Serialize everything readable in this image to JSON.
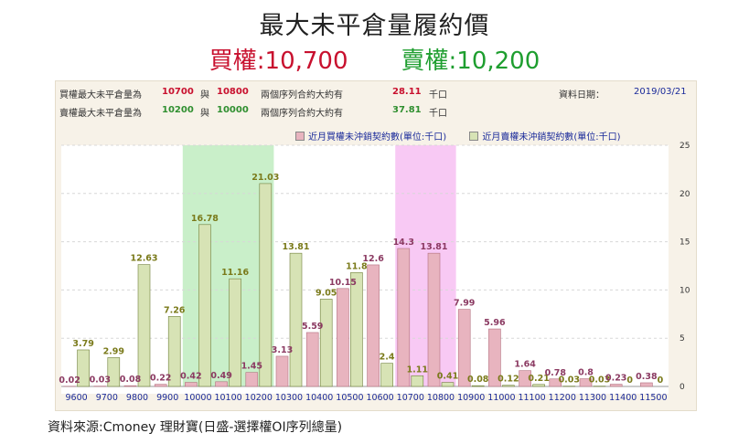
{
  "title": "最大未平倉量履約價",
  "subtitle": {
    "call_label": "買權",
    "call_value": ":10,700",
    "put_label": "賣權",
    "put_value": ":10,200"
  },
  "info": {
    "row1": {
      "label": "買權最大未平倉量為",
      "v1": "10700",
      "and": "與",
      "v2": "10800",
      "text": "兩個序列合約大約有",
      "amount": "28.11",
      "unit": "千口",
      "date_label": "資料日期：",
      "date": "2019/03/21"
    },
    "row2": {
      "label": "賣權最大未平倉量為",
      "v1": "10200",
      "and": "與",
      "v2": "10000",
      "text": "兩個序列合約大約有",
      "amount": "37.81",
      "unit": "千口"
    }
  },
  "colors": {
    "call_bar": "#e8b4bf",
    "put_bar": "#d7e3b5",
    "call_highlight": "#f8c9f4",
    "put_highlight": "#c9efc9",
    "call_label": "#8b3a62",
    "put_label": "#7a7a1a"
  },
  "chart_data": {
    "type": "bar",
    "categories": [
      "9600",
      "9700",
      "9800",
      "9900",
      "10000",
      "10100",
      "10200",
      "10300",
      "10400",
      "10500",
      "10600",
      "10700",
      "10800",
      "10900",
      "11000",
      "11100",
      "11200",
      "11300",
      "11400",
      "11500"
    ],
    "series": [
      {
        "name": "近月買權未沖銷契約數(單位:千口)",
        "values": [
          0.02,
          0.03,
          0.08,
          0.22,
          0.42,
          0.49,
          1.45,
          3.13,
          5.59,
          10.15,
          12.6,
          14.3,
          13.81,
          7.99,
          5.96,
          1.64,
          0.78,
          0.8,
          0.23,
          0.38
        ],
        "labels": [
          "0.02",
          "0.03",
          "0.08",
          "0.22",
          "0.42",
          "0.49",
          "1.45",
          "3.13",
          "5.59",
          "10.15",
          "12.6",
          "14.3",
          "13.81",
          "7.99",
          "5.96",
          "1.64",
          "0.78",
          "0.8",
          "0.23",
          "0.38"
        ]
      },
      {
        "name": "近月賣權未沖銷契約數(單位:千口)",
        "values": [
          3.79,
          2.99,
          12.63,
          7.26,
          16.78,
          11.16,
          21.03,
          13.81,
          9.05,
          11.8,
          2.4,
          1.11,
          0.41,
          0.08,
          0.12,
          0.21,
          0.03,
          0.03,
          0,
          0
        ],
        "labels": [
          "3.79",
          "2.99",
          "12.63",
          "7.26",
          "16.78",
          "11.16",
          "21.03",
          "13.81",
          "9.05",
          "11.8",
          "2.4",
          "1.11",
          "0.41",
          "0.08",
          "0.12",
          "0.21",
          "0.03",
          "0.03",
          "0",
          "0"
        ]
      }
    ],
    "ylim": [
      0,
      25
    ],
    "yticks": [
      "0",
      "5",
      "10",
      "15",
      "20",
      "25"
    ],
    "highlight_ranges": [
      {
        "from": "10000",
        "to": "10200",
        "side": "put"
      },
      {
        "from": "10700",
        "to": "10800",
        "side": "call"
      }
    ],
    "grid": true,
    "legend_position": "top-right"
  },
  "source": "資料來源:Cmoney 理財寶(日盛-選擇權OI序列總量)"
}
